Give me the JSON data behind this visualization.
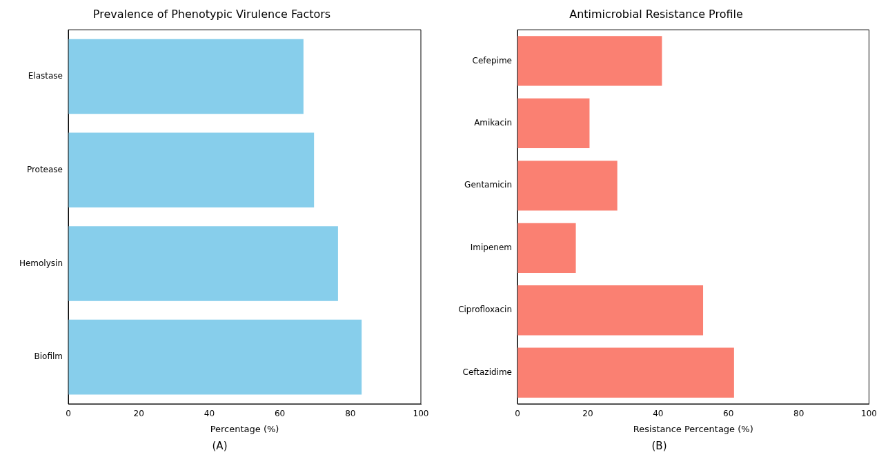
{
  "chart_data": [
    {
      "type": "bar",
      "orientation": "horizontal",
      "title": "Prevalence of Phenotypic Virulence Factors",
      "xlabel": "Percentage (%)",
      "categories": [
        "Elastase",
        "Protease",
        "Hemolysin",
        "Biofilm"
      ],
      "values": [
        66.7,
        69.7,
        76.5,
        83.2
      ],
      "color": "#87ceeb",
      "xlim": [
        0,
        100
      ],
      "xticks": [
        0,
        20,
        40,
        60,
        80,
        100
      ],
      "grid": false,
      "legend": false,
      "annotations": [
        "(A)"
      ]
    },
    {
      "type": "bar",
      "orientation": "horizontal",
      "title": "Antimicrobial Resistance Profile",
      "xlabel": "Resistance Percentage (%)",
      "categories": [
        "Cefepime",
        "Amikacin",
        "Gentamicin",
        "Imipenem",
        "Ciprofloxacin",
        "Ceftazidime"
      ],
      "values": [
        41.1,
        20.5,
        28.4,
        16.6,
        52.8,
        61.6
      ],
      "color": "#fa8072",
      "xlim": [
        0,
        100
      ],
      "xticks": [
        0,
        20,
        40,
        60,
        80,
        100
      ],
      "grid": false,
      "legend": false,
      "annotations": [
        "(B)"
      ]
    }
  ]
}
